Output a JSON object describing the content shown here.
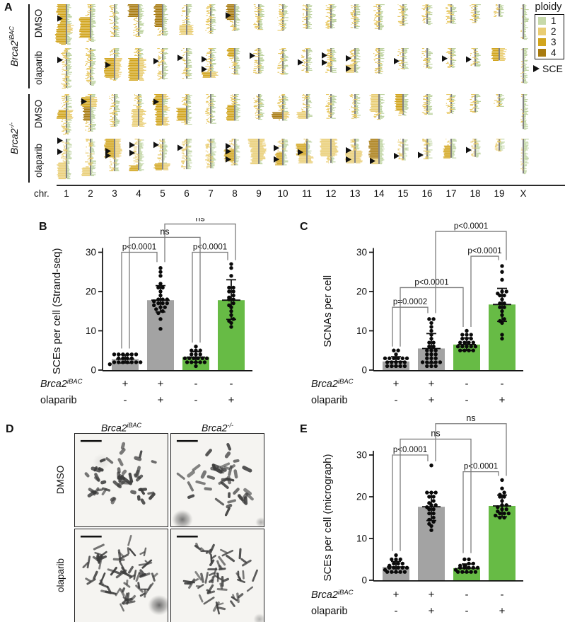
{
  "colors": {
    "ploidy1": "#c7d9aa",
    "ploidy2": "#e9cd74",
    "ploidy3": "#d2a51e",
    "ploidy4": "#a87b10",
    "gold_normal": "#e8c964",
    "green_strand": "#bed3a0",
    "bar_gray": "#a3a3a3",
    "bar_green": "#67bb45",
    "bracket_gray": "#7d7d7d",
    "chrom_line": "#4d4d4d"
  },
  "panel_a": {
    "label": "A",
    "chr_axis_label": "chr.",
    "chromosomes": [
      "1",
      "2",
      "3",
      "4",
      "5",
      "6",
      "7",
      "8",
      "9",
      "10",
      "11",
      "12",
      "13",
      "14",
      "15",
      "16",
      "17",
      "18",
      "19",
      "X"
    ],
    "chr_rel_lengths": [
      1.0,
      0.93,
      0.82,
      0.8,
      0.78,
      0.77,
      0.74,
      0.67,
      0.64,
      0.67,
      0.62,
      0.61,
      0.61,
      0.64,
      0.53,
      0.5,
      0.48,
      0.46,
      0.31,
      0.88
    ],
    "groups": [
      {
        "gene": "Brca2",
        "sup": "iBAC"
      },
      {
        "gene": "Brca2",
        "sup": "-/-"
      }
    ],
    "rows": [
      {
        "group": 0,
        "treatment": "DMSO",
        "cnv_burden": 0.3
      },
      {
        "group": 0,
        "treatment": "olaparib",
        "cnv_burden": 0.35
      },
      {
        "group": 1,
        "treatment": "DMSO",
        "cnv_burden": 0.75
      },
      {
        "group": 1,
        "treatment": "olaparib",
        "cnv_burden": 0.85
      }
    ],
    "sce_markers": [
      [
        0,
        0,
        0.36
      ],
      [
        0,
        7,
        0.42
      ],
      [
        1,
        0,
        0.3
      ],
      [
        1,
        2,
        0.52
      ],
      [
        1,
        4,
        0.42
      ],
      [
        1,
        5,
        0.32
      ],
      [
        1,
        6,
        0.38
      ],
      [
        1,
        6,
        0.72
      ],
      [
        1,
        8,
        0.3
      ],
      [
        1,
        10,
        0.58
      ],
      [
        1,
        11,
        0.3
      ],
      [
        1,
        11,
        0.6
      ],
      [
        1,
        12,
        0.42
      ],
      [
        1,
        12,
        0.85
      ],
      [
        1,
        14,
        0.62
      ],
      [
        1,
        16,
        0.55
      ],
      [
        1,
        17,
        0.62
      ],
      [
        2,
        1,
        0.2
      ],
      [
        2,
        4,
        0.25
      ],
      [
        3,
        0,
        0.05
      ],
      [
        3,
        0,
        0.33
      ],
      [
        3,
        2,
        0.38
      ],
      [
        3,
        2,
        0.52
      ],
      [
        3,
        3,
        0.2
      ],
      [
        3,
        3,
        0.45
      ],
      [
        3,
        4,
        0.2
      ],
      [
        3,
        5,
        0.3
      ],
      [
        3,
        7,
        0.28
      ],
      [
        3,
        7,
        0.48
      ],
      [
        3,
        7,
        0.78
      ],
      [
        3,
        9,
        0.35
      ],
      [
        3,
        9,
        0.78
      ],
      [
        3,
        10,
        0.55
      ],
      [
        3,
        12,
        0.48
      ],
      [
        3,
        12,
        0.86
      ],
      [
        3,
        13,
        0.88
      ],
      [
        3,
        14,
        0.82
      ],
      [
        3,
        15,
        0.82
      ],
      [
        3,
        17,
        0.62
      ]
    ],
    "legend": {
      "title": "ploidy",
      "entries": [
        {
          "label": "1",
          "color": "#c7d9aa"
        },
        {
          "label": "2",
          "color": "#e9cd74"
        },
        {
          "label": "3",
          "color": "#d2a51e"
        },
        {
          "label": "4",
          "color": "#a87b10"
        }
      ],
      "sce_label": "SCE"
    }
  },
  "chart_data": [
    {
      "id": "B",
      "type": "bar",
      "panel_label": "B",
      "ylabel": "SCEs per cell (Strand-seq)",
      "ylim": [
        0,
        30
      ],
      "yticks": [
        0,
        10,
        20,
        30
      ],
      "bar_fill": [
        "#a3a3a3",
        "#a3a3a3",
        "#67bb45",
        "#67bb45"
      ],
      "categories": [
        {
          "brca2": "+",
          "olaparib": "-"
        },
        {
          "brca2": "+",
          "olaparib": "+"
        },
        {
          "brca2": "-",
          "olaparib": "-"
        },
        {
          "brca2": "-",
          "olaparib": "+"
        }
      ],
      "means": [
        2.8,
        17.8,
        3.3,
        17.8
      ],
      "whiskers": [
        [
          1.8,
          3.9
        ],
        [
          14.8,
          21.5
        ],
        [
          2.0,
          4.7
        ],
        [
          12.9,
          23.0
        ]
      ],
      "points": [
        [
          1.5,
          2,
          2,
          2,
          2,
          2,
          2,
          2,
          3,
          3,
          3,
          3,
          4,
          4,
          4,
          4,
          4,
          4
        ],
        [
          10.5,
          13,
          14.5,
          15,
          15.5,
          16,
          16,
          16.5,
          17,
          17,
          17,
          17.5,
          18,
          18,
          18,
          19,
          20,
          21,
          21,
          22,
          24,
          25,
          26
        ],
        [
          1,
          2,
          2,
          2,
          2,
          2,
          3,
          3,
          3,
          3,
          3,
          3,
          4,
          4,
          4,
          5,
          5,
          5,
          6
        ],
        [
          11,
          12,
          12.5,
          13,
          14,
          15,
          16,
          16.5,
          17,
          18,
          18,
          18.5,
          19,
          20,
          20,
          21,
          21,
          24,
          26,
          27
        ]
      ],
      "comparisons": [
        {
          "a": 0,
          "b": 1,
          "label": "p<0.0001",
          "y": 30,
          "drop_a": 5.5,
          "drop_b": 27.5
        },
        {
          "a": 2,
          "b": 3,
          "label": "p<0.0001",
          "y": 30,
          "drop_a": 7,
          "drop_b": 28
        },
        {
          "a": 0,
          "b": 2,
          "label": "ns",
          "y": 33.8,
          "drop_a": 5.5,
          "drop_b": 7
        },
        {
          "a": 1,
          "b": 3,
          "label": "ns",
          "y": 37.2,
          "drop_a": 27.5,
          "drop_b": 28
        }
      ],
      "row_label_gene": "Brca2",
      "row_label_gene_sup": "iBAC",
      "row_label_treatment": "olaparib"
    },
    {
      "id": "C",
      "type": "bar",
      "panel_label": "C",
      "ylabel": "SCNAs per cell",
      "ylim": [
        0,
        30
      ],
      "yticks": [
        0,
        10,
        20,
        30
      ],
      "bar_fill": [
        "#a3a3a3",
        "#a3a3a3",
        "#67bb45",
        "#67bb45"
      ],
      "categories": [
        {
          "brca2": "+",
          "olaparib": "-"
        },
        {
          "brca2": "+",
          "olaparib": "+"
        },
        {
          "brca2": "-",
          "olaparib": "-"
        },
        {
          "brca2": "-",
          "olaparib": "+"
        }
      ],
      "means": [
        2.2,
        5.5,
        6.5,
        16.7
      ],
      "whiskers": [
        [
          1.0,
          3.4
        ],
        [
          1.8,
          9.3
        ],
        [
          5.0,
          8.2
        ],
        [
          12.4,
          20.8
        ]
      ],
      "points": [
        [
          1,
          1,
          1,
          1,
          1,
          2,
          2,
          2,
          2,
          2,
          3,
          3,
          3,
          3,
          3,
          3,
          4,
          5,
          5
        ],
        [
          1,
          1,
          1,
          2,
          2,
          2,
          2,
          2,
          3,
          3,
          3,
          4,
          4,
          4,
          5,
          5,
          5,
          6,
          6,
          7,
          7,
          8,
          9,
          10,
          11,
          12,
          13,
          13
        ],
        [
          5,
          5,
          5,
          5,
          6,
          6,
          6,
          6,
          6,
          7,
          7,
          7,
          7,
          8,
          8,
          8,
          9,
          9,
          9,
          10
        ],
        [
          8,
          9,
          12,
          12.5,
          13,
          14,
          15,
          16,
          16,
          17,
          17,
          18,
          19,
          19,
          19.5,
          20,
          20,
          23,
          25,
          26.5
        ]
      ],
      "comparisons": [
        {
          "a": 0,
          "b": 1,
          "label": "p=0.0002",
          "y": 16,
          "drop_a": 6,
          "drop_b": 14.5
        },
        {
          "a": 0,
          "b": 2,
          "label": "p<0.0001",
          "y": 21,
          "drop_a": 6,
          "drop_b": 11
        },
        {
          "a": 2,
          "b": 3,
          "label": "p<0.0001",
          "y": 29,
          "drop_a": 11,
          "drop_b": 28
        },
        {
          "a": 1,
          "b": 3,
          "label": "p<0.0001",
          "y": 35.3,
          "drop_a": 14.5,
          "drop_b": 28
        }
      ],
      "row_label_gene": "Brca2",
      "row_label_gene_sup": "iBAC",
      "row_label_treatment": "olaparib"
    },
    {
      "id": "E",
      "type": "bar",
      "panel_label": "E",
      "ylabel": "SCEs per cell (micrograph)",
      "ylim": [
        0,
        30
      ],
      "yticks": [
        0,
        10,
        20,
        30
      ],
      "bar_fill": [
        "#a3a3a3",
        "#a3a3a3",
        "#67bb45",
        "#67bb45"
      ],
      "categories": [
        {
          "brca2": "+",
          "olaparib": "-"
        },
        {
          "brca2": "+",
          "olaparib": "+"
        },
        {
          "brca2": "-",
          "olaparib": "-"
        },
        {
          "brca2": "-",
          "olaparib": "+"
        }
      ],
      "means": [
        3.2,
        17.6,
        2.9,
        17.8
      ],
      "whiskers": [
        [
          1.9,
          4.5
        ],
        [
          14.3,
          21.0
        ],
        [
          1.9,
          3.9
        ],
        [
          15.2,
          20.4
        ]
      ],
      "points": [
        [
          2,
          2,
          2,
          2,
          2,
          2.5,
          3,
          3,
          3,
          3,
          3,
          3.5,
          4,
          4,
          4,
          5,
          5,
          5,
          6
        ],
        [
          12,
          13,
          13.5,
          14,
          14.5,
          15,
          16,
          16,
          17,
          17,
          17.5,
          18,
          18,
          18.5,
          19,
          20,
          20,
          21,
          21,
          21,
          27.5
        ],
        [
          2,
          2,
          2,
          2,
          2,
          2.5,
          3,
          3,
          3,
          3,
          3,
          3.5,
          3.5,
          4,
          4,
          5,
          5
        ],
        [
          15,
          15,
          15.5,
          16,
          16,
          16,
          16.5,
          17,
          17,
          17.5,
          18,
          18,
          19,
          20,
          20,
          20.5,
          21,
          22,
          24
        ]
      ],
      "comparisons": [
        {
          "a": 0,
          "b": 1,
          "label": "p<0.0001",
          "y": 30,
          "drop_a": 7,
          "drop_b": 28.5
        },
        {
          "a": 2,
          "b": 3,
          "label": "p<0.0001",
          "y": 26,
          "drop_a": 6.5,
          "drop_b": 25
        },
        {
          "a": 0,
          "b": 2,
          "label": "ns",
          "y": 33.8,
          "drop_a": 7,
          "drop_b": 6.5
        },
        {
          "a": 1,
          "b": 3,
          "label": "ns",
          "y": 37.5,
          "drop_a": 28.5,
          "drop_b": 25
        }
      ],
      "row_label_gene": "Brca2",
      "row_label_gene_sup": "iBAC",
      "row_label_treatment": "olaparib"
    }
  ],
  "panel_d": {
    "label": "D",
    "col_headers": [
      {
        "gene": "Brca2",
        "sup": "iBAC"
      },
      {
        "gene": "Brca2",
        "sup": "-/-"
      }
    ],
    "row_labels": [
      "DMSO",
      "olaparib"
    ],
    "images": [
      {
        "seed": 11,
        "thin": false,
        "count": 46,
        "blobs": [
          [
            38,
            40,
            13,
            0.12
          ]
        ]
      },
      {
        "seed": 23,
        "thin": false,
        "count": 42,
        "blobs": [
          [
            16,
            122,
            15,
            0.8
          ],
          [
            128,
            126,
            8,
            0.45
          ]
        ]
      },
      {
        "seed": 35,
        "thin": true,
        "count": 44,
        "blobs": [
          [
            120,
            108,
            16,
            0.85
          ]
        ]
      },
      {
        "seed": 47,
        "thin": true,
        "count": 42,
        "blobs": [
          [
            126,
            128,
            9,
            0.4
          ]
        ]
      }
    ]
  }
}
